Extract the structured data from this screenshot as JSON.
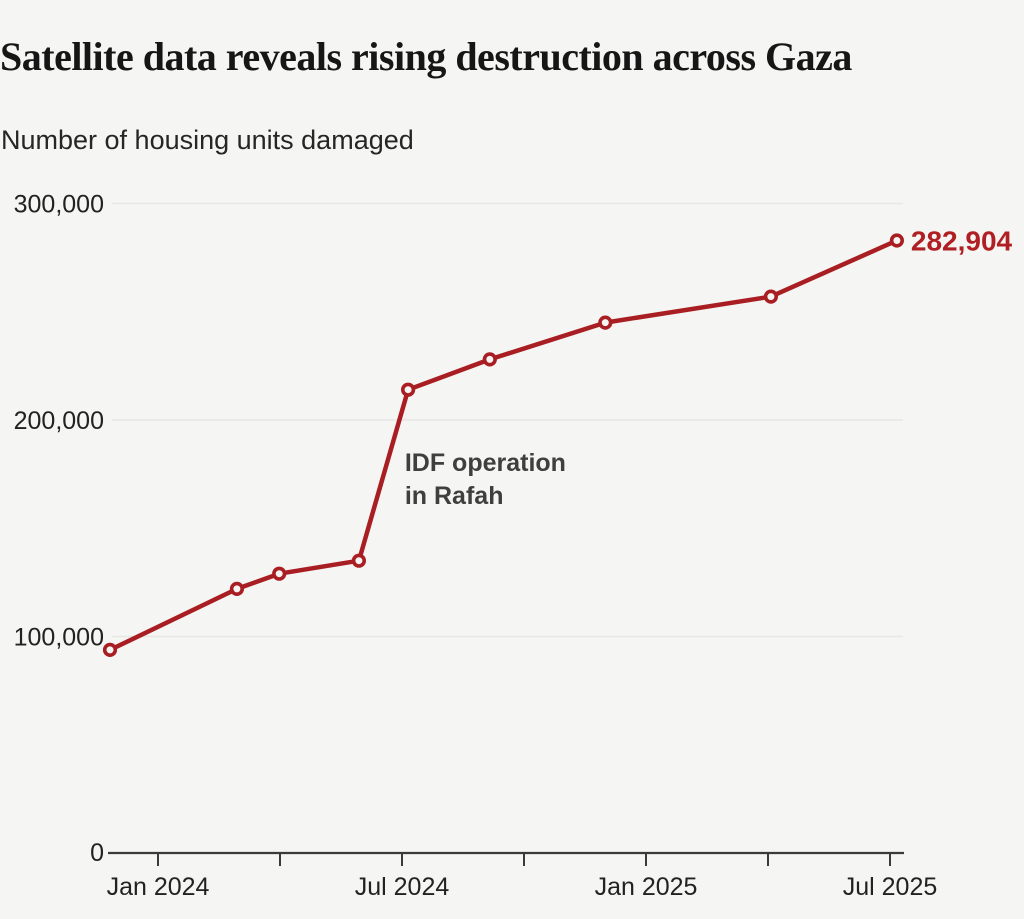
{
  "header": {
    "title": "Satellite data reveals rising destruction across Gaza",
    "subtitle": "Number of housing units damaged"
  },
  "chart_data": {
    "type": "line",
    "title": "Satellite data reveals rising destruction across Gaza",
    "ylabel": "Number of housing units damaged",
    "xlabel": "",
    "ylim": [
      0,
      300000
    ],
    "grid": "horizontal",
    "legend_position": "none",
    "y_axis": {
      "zero_label": "0",
      "gridlines": [
        {
          "value": 100000,
          "label": "100,000"
        },
        {
          "value": 200000,
          "label": "200,000"
        },
        {
          "value": 300000,
          "label": "300,000"
        }
      ]
    },
    "x_axis": {
      "ticks": [
        {
          "m": 0,
          "label": "Jan 2024"
        },
        {
          "m": 3,
          "label": ""
        },
        {
          "m": 6,
          "label": "Jul 2024"
        },
        {
          "m": 9,
          "label": ""
        },
        {
          "m": 12,
          "label": "Jan 2025"
        },
        {
          "m": 15,
          "label": ""
        },
        {
          "m": 18,
          "label": "Jul 2025"
        }
      ]
    },
    "series": [
      {
        "name": "Housing units damaged",
        "points": [
          {
            "date": "Nov 2023",
            "m": -1.18,
            "value": 93800
          },
          {
            "date": "Feb 2024",
            "m": 1.94,
            "value": 122000
          },
          {
            "date": "Apr 2024",
            "m": 2.98,
            "value": 129000
          },
          {
            "date": "May 2024",
            "m": 4.94,
            "value": 135000
          },
          {
            "date": "Jul 2024",
            "m": 6.15,
            "value": 214000
          },
          {
            "date": "Sep 2024",
            "m": 8.16,
            "value": 228000
          },
          {
            "date": "Dec 2024",
            "m": 11.0,
            "value": 245000
          },
          {
            "date": "Apr 2025",
            "m": 15.07,
            "value": 257000
          },
          {
            "date": "Jul 2025",
            "m": 18.17,
            "value": 282904
          }
        ]
      }
    ],
    "annotation": {
      "lines": [
        "IDF operation",
        "in Rafah"
      ],
      "m": 6.07,
      "value": 176500
    },
    "end_label": {
      "text": "282,904"
    },
    "colors": {
      "line": "#a91e22",
      "marker_fill": "#f5f5f3",
      "end_label": "#b01f23",
      "annotation": "#3f3f3f",
      "axis": "#3a3a3a",
      "grid": "#e7e7e4",
      "text": "#222222",
      "background": "#f5f5f3"
    }
  }
}
